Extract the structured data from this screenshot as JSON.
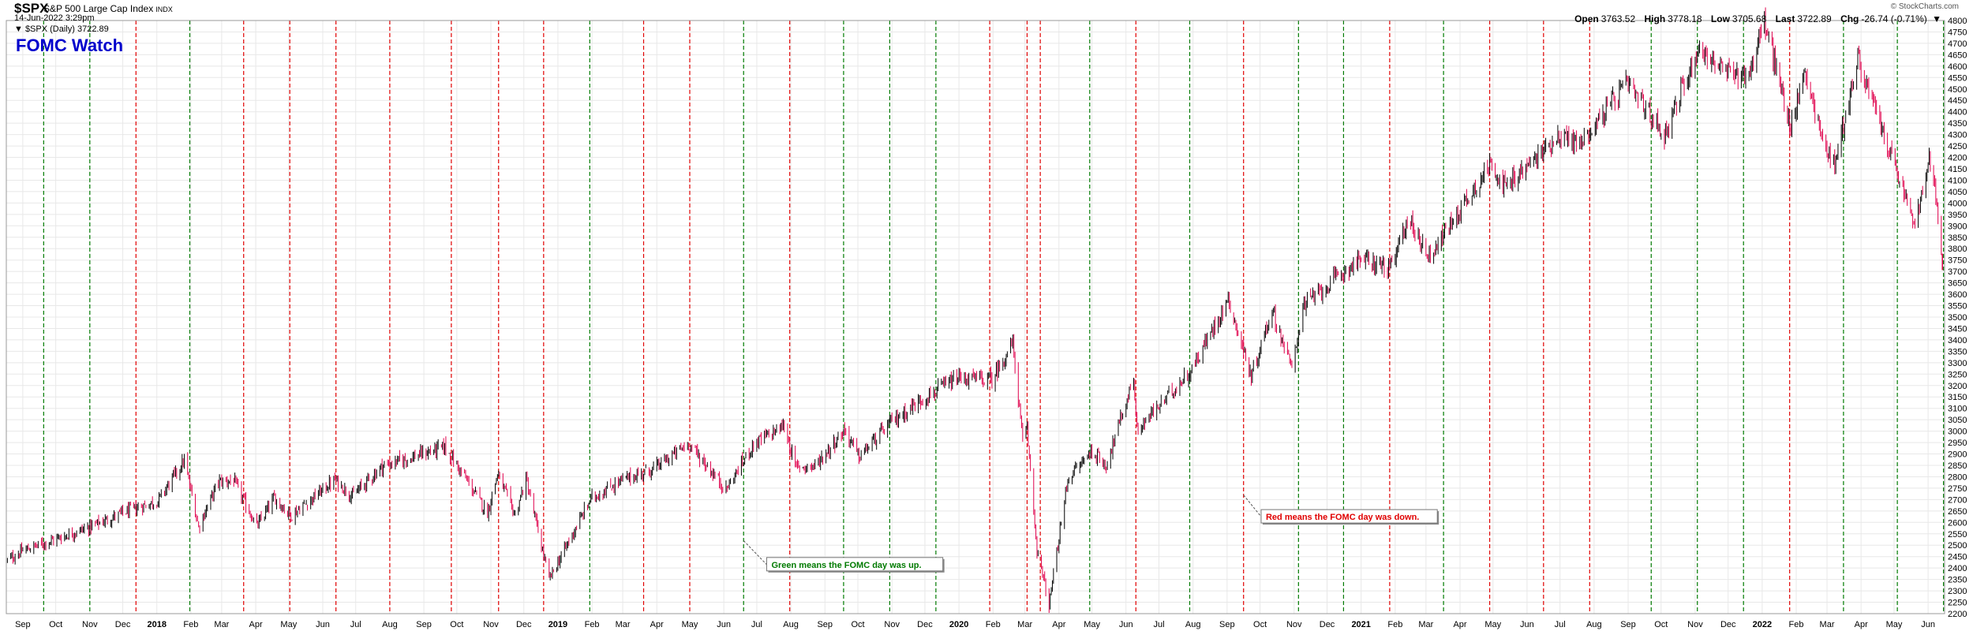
{
  "header": {
    "symbol": "$SPX",
    "name": "S&P 500 Large Cap Index",
    "exchange": "INDX",
    "datetime": "14-Jun-2022 3:29pm",
    "daily_label": "▼ $SPX (Daily) 3722.89",
    "brand": "© StockCharts.com",
    "quotes": {
      "open_label": "Open",
      "open": "3763.52",
      "high_label": "High",
      "high": "3778.18",
      "low_label": "Low",
      "low": "3705.68",
      "last_label": "Last",
      "last": "3722.89",
      "chg_label": "Chg",
      "chg": "-26.74 (-0.71%)",
      "chg_arrow": "▼"
    }
  },
  "colors": {
    "up": "#000000",
    "down": "#e0004c",
    "fomc_up": "#007a00",
    "fomc_down": "#e00000",
    "title": "#0000cc",
    "grid": "#e8e8e8"
  },
  "chart_data": {
    "type": "candlestick",
    "title": "FOMC Watch",
    "ylim": [
      2200,
      4800
    ],
    "y_ticks": [
      2200,
      2250,
      2300,
      2350,
      2400,
      2450,
      2500,
      2550,
      2600,
      2650,
      2700,
      2750,
      2800,
      2850,
      2900,
      2950,
      3000,
      3050,
      3100,
      3150,
      3200,
      3250,
      3300,
      3350,
      3400,
      3450,
      3500,
      3550,
      3600,
      3650,
      3700,
      3750,
      3800,
      3850,
      3900,
      3950,
      4000,
      4050,
      4100,
      4150,
      4200,
      4250,
      4300,
      4350,
      4400,
      4450,
      4500,
      4550,
      4600,
      4650,
      4700,
      4750,
      4800
    ],
    "x_range": [
      "2017-08-17",
      "2022-06-16"
    ],
    "x_ticks": [
      {
        "label": "Sep",
        "date": "2017-09-01"
      },
      {
        "label": "Oct",
        "date": "2017-10-01"
      },
      {
        "label": "Nov",
        "date": "2017-11-01"
      },
      {
        "label": "Dec",
        "date": "2017-12-01"
      },
      {
        "label": "2018",
        "date": "2018-01-01",
        "bold": true
      },
      {
        "label": "Feb",
        "date": "2018-02-01"
      },
      {
        "label": "Mar",
        "date": "2018-03-01"
      },
      {
        "label": "Apr",
        "date": "2018-04-01"
      },
      {
        "label": "May",
        "date": "2018-05-01"
      },
      {
        "label": "Jun",
        "date": "2018-06-01"
      },
      {
        "label": "Jul",
        "date": "2018-07-01"
      },
      {
        "label": "Aug",
        "date": "2018-08-01"
      },
      {
        "label": "Sep",
        "date": "2018-09-01"
      },
      {
        "label": "Oct",
        "date": "2018-10-01"
      },
      {
        "label": "Nov",
        "date": "2018-11-01"
      },
      {
        "label": "Dec",
        "date": "2018-12-01"
      },
      {
        "label": "2019",
        "date": "2019-01-01",
        "bold": true
      },
      {
        "label": "Feb",
        "date": "2019-02-01"
      },
      {
        "label": "Mar",
        "date": "2019-03-01"
      },
      {
        "label": "Apr",
        "date": "2019-04-01"
      },
      {
        "label": "May",
        "date": "2019-05-01"
      },
      {
        "label": "Jun",
        "date": "2019-06-01"
      },
      {
        "label": "Jul",
        "date": "2019-07-01"
      },
      {
        "label": "Aug",
        "date": "2019-08-01"
      },
      {
        "label": "Sep",
        "date": "2019-09-01"
      },
      {
        "label": "Oct",
        "date": "2019-10-01"
      },
      {
        "label": "Nov",
        "date": "2019-11-01"
      },
      {
        "label": "Dec",
        "date": "2019-12-01"
      },
      {
        "label": "2020",
        "date": "2020-01-01",
        "bold": true
      },
      {
        "label": "Feb",
        "date": "2020-02-01"
      },
      {
        "label": "Mar",
        "date": "2020-03-01"
      },
      {
        "label": "Apr",
        "date": "2020-04-01"
      },
      {
        "label": "May",
        "date": "2020-05-01"
      },
      {
        "label": "Jun",
        "date": "2020-06-01"
      },
      {
        "label": "Jul",
        "date": "2020-07-01"
      },
      {
        "label": "Aug",
        "date": "2020-08-01"
      },
      {
        "label": "Sep",
        "date": "2020-09-01"
      },
      {
        "label": "Oct",
        "date": "2020-10-01"
      },
      {
        "label": "Nov",
        "date": "2020-11-01"
      },
      {
        "label": "Dec",
        "date": "2020-12-01"
      },
      {
        "label": "2021",
        "date": "2021-01-01",
        "bold": true
      },
      {
        "label": "Feb",
        "date": "2021-02-01"
      },
      {
        "label": "Mar",
        "date": "2021-03-01"
      },
      {
        "label": "Apr",
        "date": "2021-04-01"
      },
      {
        "label": "May",
        "date": "2021-05-01"
      },
      {
        "label": "Jun",
        "date": "2021-06-01"
      },
      {
        "label": "Jul",
        "date": "2021-07-01"
      },
      {
        "label": "Aug",
        "date": "2021-08-01"
      },
      {
        "label": "Sep",
        "date": "2021-09-01"
      },
      {
        "label": "Oct",
        "date": "2021-10-01"
      },
      {
        "label": "Nov",
        "date": "2021-11-01"
      },
      {
        "label": "Dec",
        "date": "2021-12-01"
      },
      {
        "label": "2022",
        "date": "2022-01-01",
        "bold": true
      },
      {
        "label": "Feb",
        "date": "2022-02-01"
      },
      {
        "label": "Mar",
        "date": "2022-03-01"
      },
      {
        "label": "Apr",
        "date": "2022-04-01"
      },
      {
        "label": "May",
        "date": "2022-05-01"
      },
      {
        "label": "Jun",
        "date": "2022-06-01"
      }
    ],
    "fomc_days": [
      {
        "date": "2017-09-20",
        "result": "up"
      },
      {
        "date": "2017-11-01",
        "result": "up"
      },
      {
        "date": "2017-12-13",
        "result": "down"
      },
      {
        "date": "2018-01-31",
        "result": "up"
      },
      {
        "date": "2018-03-21",
        "result": "down"
      },
      {
        "date": "2018-05-02",
        "result": "down"
      },
      {
        "date": "2018-06-13",
        "result": "down"
      },
      {
        "date": "2018-08-01",
        "result": "down"
      },
      {
        "date": "2018-09-26",
        "result": "down"
      },
      {
        "date": "2018-11-08",
        "result": "down"
      },
      {
        "date": "2018-12-19",
        "result": "down"
      },
      {
        "date": "2019-01-30",
        "result": "up"
      },
      {
        "date": "2019-03-20",
        "result": "down"
      },
      {
        "date": "2019-05-01",
        "result": "down"
      },
      {
        "date": "2019-06-19",
        "result": "up"
      },
      {
        "date": "2019-07-31",
        "result": "down"
      },
      {
        "date": "2019-09-18",
        "result": "up"
      },
      {
        "date": "2019-10-30",
        "result": "up"
      },
      {
        "date": "2019-12-11",
        "result": "up"
      },
      {
        "date": "2020-01-29",
        "result": "down"
      },
      {
        "date": "2020-03-03",
        "result": "down"
      },
      {
        "date": "2020-03-15",
        "result": "down"
      },
      {
        "date": "2020-04-29",
        "result": "up"
      },
      {
        "date": "2020-06-10",
        "result": "down"
      },
      {
        "date": "2020-07-29",
        "result": "up"
      },
      {
        "date": "2020-09-16",
        "result": "down"
      },
      {
        "date": "2020-11-05",
        "result": "up"
      },
      {
        "date": "2020-12-16",
        "result": "up"
      },
      {
        "date": "2021-01-27",
        "result": "down"
      },
      {
        "date": "2021-03-17",
        "result": "up"
      },
      {
        "date": "2021-04-28",
        "result": "down"
      },
      {
        "date": "2021-06-16",
        "result": "down"
      },
      {
        "date": "2021-07-28",
        "result": "down"
      },
      {
        "date": "2021-09-22",
        "result": "up"
      },
      {
        "date": "2021-11-03",
        "result": "up"
      },
      {
        "date": "2021-12-15",
        "result": "up"
      },
      {
        "date": "2022-01-26",
        "result": "down"
      },
      {
        "date": "2022-03-16",
        "result": "up"
      },
      {
        "date": "2022-05-04",
        "result": "up"
      },
      {
        "date": "2022-06-15",
        "result": "up"
      }
    ],
    "price_path": [
      [
        "2017-08-17",
        2430
      ],
      [
        "2017-09-01",
        2476
      ],
      [
        "2017-10-02",
        2529
      ],
      [
        "2017-11-01",
        2580
      ],
      [
        "2017-12-01",
        2642
      ],
      [
        "2018-01-02",
        2695
      ],
      [
        "2018-01-26",
        2872
      ],
      [
        "2018-02-08",
        2581
      ],
      [
        "2018-02-26",
        2779
      ],
      [
        "2018-03-12",
        2783
      ],
      [
        "2018-04-02",
        2582
      ],
      [
        "2018-04-18",
        2708
      ],
      [
        "2018-05-03",
        2629
      ],
      [
        "2018-06-12",
        2786
      ],
      [
        "2018-06-28",
        2716
      ],
      [
        "2018-07-25",
        2846
      ],
      [
        "2018-08-31",
        2901
      ],
      [
        "2018-09-20",
        2930
      ],
      [
        "2018-10-10",
        2785
      ],
      [
        "2018-10-29",
        2641
      ],
      [
        "2018-11-07",
        2813
      ],
      [
        "2018-11-23",
        2632
      ],
      [
        "2018-12-03",
        2790
      ],
      [
        "2018-12-24",
        2351
      ],
      [
        "2019-01-31",
        2704
      ],
      [
        "2019-02-28",
        2784
      ],
      [
        "2019-03-29",
        2834
      ],
      [
        "2019-04-30",
        2946
      ],
      [
        "2019-06-03",
        2744
      ],
      [
        "2019-06-28",
        2942
      ],
      [
        "2019-07-26",
        3025
      ],
      [
        "2019-08-05",
        2844
      ],
      [
        "2019-08-23",
        2847
      ],
      [
        "2019-09-19",
        3006
      ],
      [
        "2019-10-02",
        2887
      ],
      [
        "2019-10-31",
        3038
      ],
      [
        "2019-11-29",
        3141
      ],
      [
        "2019-12-31",
        3231
      ],
      [
        "2020-01-31",
        3226
      ],
      [
        "2020-02-19",
        3386
      ],
      [
        "2020-02-28",
        2954
      ],
      [
        "2020-03-03",
        3003
      ],
      [
        "2020-03-12",
        2480
      ],
      [
        "2020-03-23",
        2237
      ],
      [
        "2020-04-09",
        2790
      ],
      [
        "2020-04-30",
        2912
      ],
      [
        "2020-05-14",
        2852
      ],
      [
        "2020-06-08",
        3232
      ],
      [
        "2020-06-11",
        3002
      ],
      [
        "2020-07-31",
        3271
      ],
      [
        "2020-09-02",
        3580
      ],
      [
        "2020-09-23",
        3237
      ],
      [
        "2020-10-12",
        3534
      ],
      [
        "2020-10-30",
        3270
      ],
      [
        "2020-11-09",
        3550
      ],
      [
        "2020-12-31",
        3756
      ],
      [
        "2021-01-29",
        3714
      ],
      [
        "2021-02-12",
        3934
      ],
      [
        "2021-03-04",
        3768
      ],
      [
        "2021-04-30",
        4181
      ],
      [
        "2021-05-12",
        4063
      ],
      [
        "2021-06-30",
        4298
      ],
      [
        "2021-07-19",
        4258
      ],
      [
        "2021-08-31",
        4523
      ],
      [
        "2021-10-04",
        4300
      ],
      [
        "2021-11-04",
        4680
      ],
      [
        "2021-11-30",
        4567
      ],
      [
        "2021-12-20",
        4568
      ],
      [
        "2022-01-03",
        4796
      ],
      [
        "2022-01-27",
        4326
      ],
      [
        "2022-02-09",
        4587
      ],
      [
        "2022-02-24",
        4288
      ],
      [
        "2022-03-08",
        4170
      ],
      [
        "2022-03-29",
        4631
      ],
      [
        "2022-05-02",
        4155
      ],
      [
        "2022-05-20",
        3901
      ],
      [
        "2022-06-02",
        4177
      ],
      [
        "2022-06-09",
        4018
      ],
      [
        "2022-06-13",
        3750
      ],
      [
        "2022-06-14",
        3723
      ]
    ],
    "annotations": [
      {
        "id": "green",
        "text": "Green means the FOMC day was up.",
        "color": "#007a00",
        "anchor": {
          "date": "2019-06-19",
          "value": 2520
        },
        "box": {
          "date": "2019-07-10",
          "value": 2415
        }
      },
      {
        "id": "red",
        "text": "Red means the FOMC day was down.",
        "color": "#e00000",
        "anchor": {
          "date": "2020-09-16",
          "value": 2720
        },
        "box": {
          "date": "2020-10-02",
          "value": 2625
        }
      }
    ]
  }
}
